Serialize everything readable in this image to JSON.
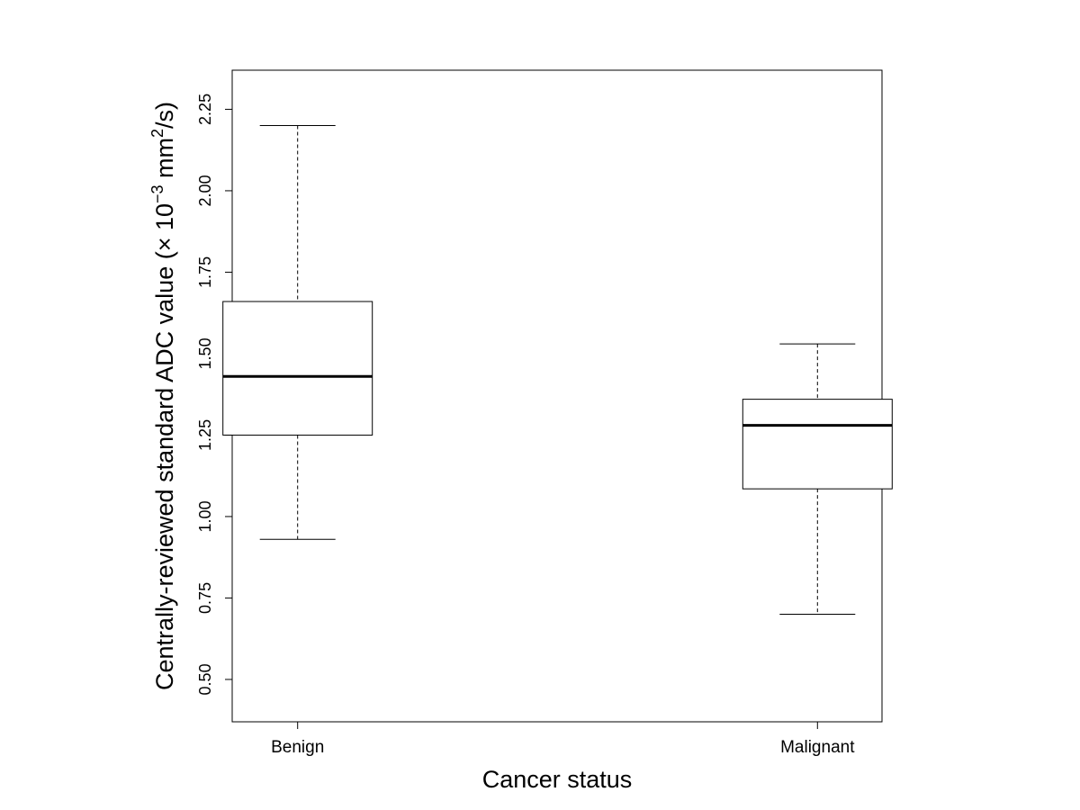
{
  "chart_data": {
    "type": "boxplot",
    "title": "",
    "xlabel": "Cancer status",
    "ylabel": {
      "main": "Centrally-reviewed standard ADC value (× 10",
      "exponent": "−3",
      "unit": " mm",
      "unit_exponent": "2",
      "suffix": "/s)"
    },
    "ylim": [
      0.37,
      2.37
    ],
    "yticks": [
      0.5,
      0.75,
      1.0,
      1.25,
      1.5,
      1.75,
      2.0,
      2.25
    ],
    "ytick_labels": [
      "0.50",
      "0.75",
      "1.00",
      "1.25",
      "1.50",
      "1.75",
      "2.00",
      "2.25"
    ],
    "categories": [
      "Benign",
      "Malignant"
    ],
    "boxes": [
      {
        "name": "Benign",
        "whisker_low": 0.93,
        "q1": 1.25,
        "median": 1.43,
        "q3": 1.66,
        "whisker_high": 2.2
      },
      {
        "name": "Malignant",
        "whisker_low": 0.7,
        "q1": 1.085,
        "median": 1.28,
        "q3": 1.36,
        "whisker_high": 1.53
      }
    ],
    "colors": {
      "stroke": "#000000",
      "box_fill": "#ffffff",
      "background": "#ffffff"
    }
  }
}
